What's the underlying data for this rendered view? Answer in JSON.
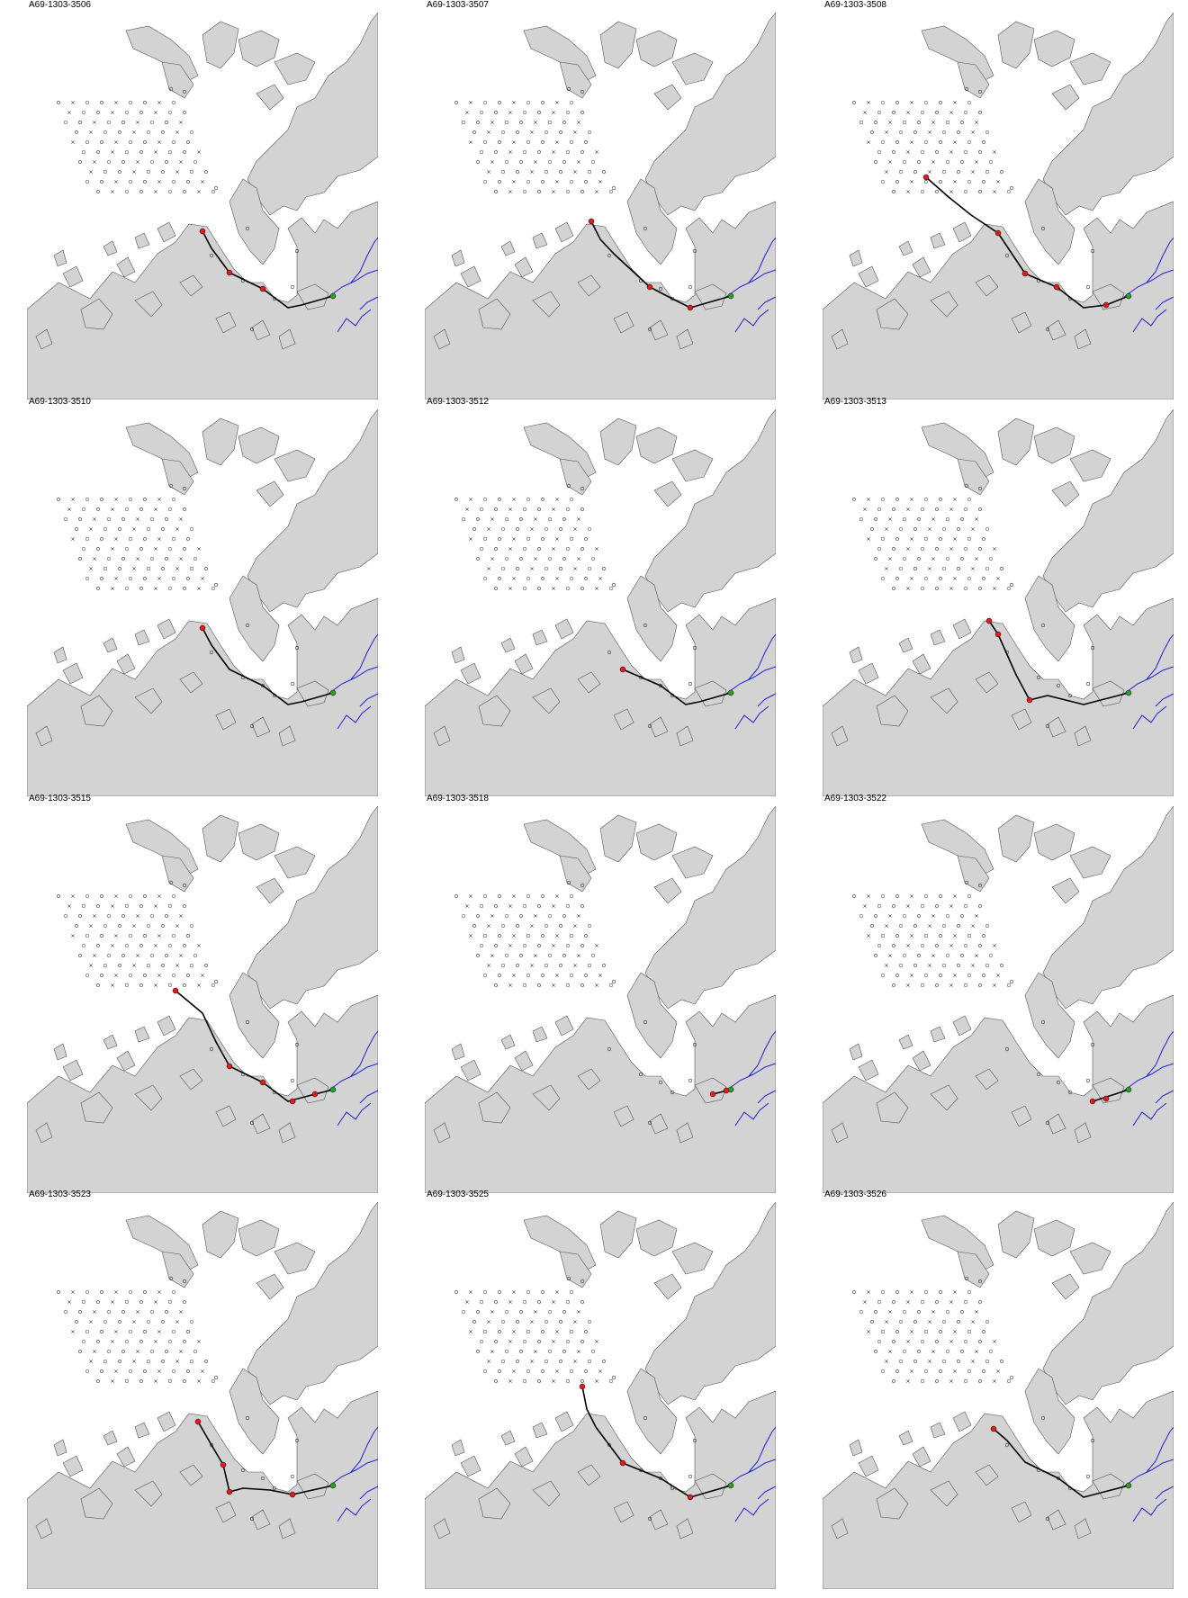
{
  "panels": [
    {
      "id": "A69-1303-3506",
      "track": [
        [
          195,
          243
        ],
        [
          205,
          262
        ],
        [
          225,
          289
        ],
        [
          262,
          307
        ],
        [
          290,
          328
        ],
        [
          305,
          325
        ],
        [
          340,
          315
        ]
      ],
      "red": [
        [
          195,
          243
        ],
        [
          225,
          289
        ],
        [
          262,
          307
        ]
      ]
    },
    {
      "id": "A69-1303-3507",
      "track": [
        [
          185,
          232
        ],
        [
          195,
          252
        ],
        [
          210,
          268
        ],
        [
          250,
          305
        ],
        [
          275,
          318
        ],
        [
          295,
          328
        ],
        [
          340,
          315
        ]
      ],
      "red": [
        [
          185,
          232
        ],
        [
          250,
          305
        ],
        [
          295,
          328
        ]
      ]
    },
    {
      "id": "A69-1303-3508",
      "track": [
        [
          115,
          183
        ],
        [
          140,
          205
        ],
        [
          165,
          225
        ],
        [
          195,
          245
        ],
        [
          225,
          290
        ],
        [
          260,
          305
        ],
        [
          290,
          328
        ],
        [
          315,
          325
        ],
        [
          340,
          315
        ]
      ],
      "red": [
        [
          115,
          183
        ],
        [
          195,
          245
        ],
        [
          225,
          290
        ],
        [
          260,
          305
        ],
        [
          315,
          325
        ]
      ]
    },
    {
      "id": "A69-1303-3510",
      "track": [
        [
          195,
          243
        ],
        [
          205,
          262
        ],
        [
          225,
          289
        ],
        [
          262,
          307
        ],
        [
          290,
          328
        ],
        [
          305,
          325
        ],
        [
          340,
          315
        ]
      ],
      "red": [
        [
          195,
          243
        ]
      ]
    },
    {
      "id": "A69-1303-3512",
      "track": [
        [
          220,
          289
        ],
        [
          262,
          307
        ],
        [
          290,
          328
        ],
        [
          305,
          325
        ],
        [
          340,
          315
        ]
      ],
      "red": [
        [
          220,
          289
        ]
      ]
    },
    {
      "id": "A69-1303-3513",
      "track": [
        [
          185,
          235
        ],
        [
          195,
          250
        ],
        [
          215,
          295
        ],
        [
          230,
          323
        ],
        [
          250,
          318
        ],
        [
          290,
          328
        ],
        [
          340,
          315
        ]
      ],
      "red": [
        [
          185,
          235
        ],
        [
          195,
          250
        ],
        [
          230,
          323
        ]
      ]
    },
    {
      "id": "A69-1303-3515",
      "track": [
        [
          165,
          205
        ],
        [
          195,
          230
        ],
        [
          210,
          262
        ],
        [
          225,
          289
        ],
        [
          262,
          307
        ],
        [
          290,
          328
        ],
        [
          320,
          320
        ],
        [
          340,
          315
        ]
      ],
      "red": [
        [
          165,
          205
        ],
        [
          225,
          289
        ],
        [
          262,
          307
        ],
        [
          295,
          328
        ],
        [
          320,
          320
        ]
      ]
    },
    {
      "id": "A69-1303-3518",
      "track": [
        [
          320,
          320
        ],
        [
          340,
          315
        ]
      ],
      "red": [
        [
          320,
          320
        ],
        [
          335,
          316
        ]
      ]
    },
    {
      "id": "A69-1303-3522",
      "track": [
        [
          300,
          328
        ],
        [
          325,
          320
        ],
        [
          340,
          315
        ]
      ],
      "red": [
        [
          300,
          328
        ],
        [
          315,
          325
        ]
      ]
    },
    {
      "id": "A69-1303-3523",
      "track": [
        [
          190,
          244
        ],
        [
          205,
          270
        ],
        [
          218,
          292
        ],
        [
          225,
          322
        ],
        [
          240,
          318
        ],
        [
          270,
          320
        ],
        [
          295,
          325
        ],
        [
          340,
          315
        ]
      ],
      "red": [
        [
          190,
          244
        ],
        [
          218,
          292
        ],
        [
          225,
          322
        ],
        [
          295,
          325
        ]
      ]
    },
    {
      "id": "A69-1303-3525",
      "track": [
        [
          175,
          205
        ],
        [
          180,
          230
        ],
        [
          190,
          250
        ],
        [
          220,
          290
        ],
        [
          262,
          307
        ],
        [
          295,
          328
        ],
        [
          340,
          315
        ]
      ],
      "red": [
        [
          175,
          205
        ],
        [
          220,
          290
        ],
        [
          295,
          328
        ]
      ]
    },
    {
      "id": "A69-1303-3526",
      "track": [
        [
          190,
          252
        ],
        [
          205,
          265
        ],
        [
          225,
          289
        ],
        [
          262,
          307
        ],
        [
          290,
          328
        ],
        [
          340,
          315
        ]
      ],
      "red": [
        [
          190,
          252
        ]
      ]
    }
  ],
  "colors": {
    "land": "#d3d3d3",
    "coast": "#555555",
    "water": "#ffffff",
    "track": "#000000",
    "detection": "#e41a1c",
    "release": "#2ca02c",
    "river": "#1f1fdc",
    "receiver": "#333333"
  }
}
